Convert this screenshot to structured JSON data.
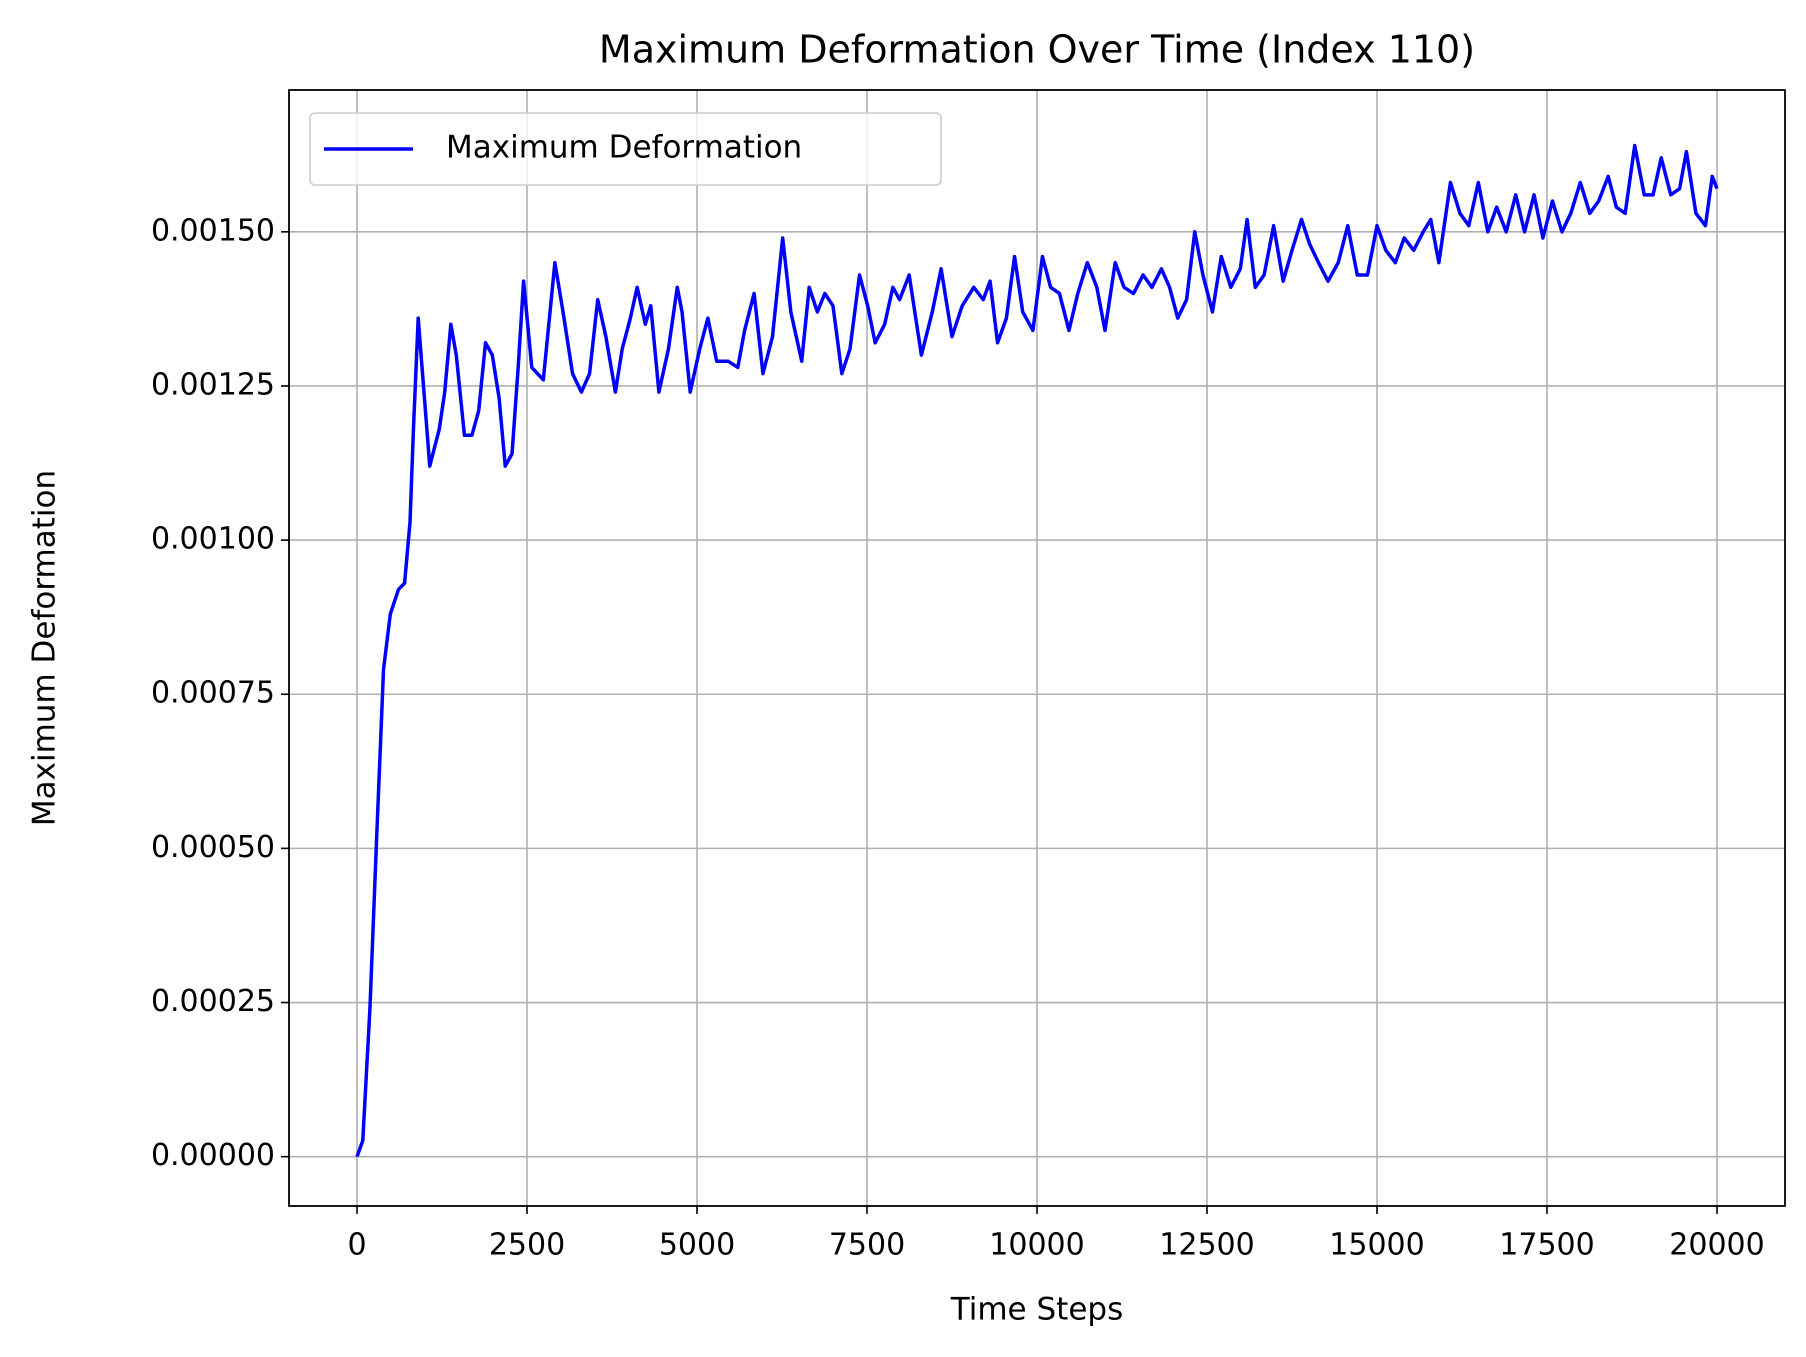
{
  "chart_data": {
    "type": "line",
    "title": "Maximum Deformation Over Time (Index 110)",
    "xlabel": "Time Steps",
    "ylabel": "Maximum Deformation",
    "xlim": [
      -1000,
      21000
    ],
    "ylim": [
      -8e-05,
      0.00173
    ],
    "xticks": [
      0,
      2500,
      5000,
      7500,
      10000,
      12500,
      15000,
      17500,
      20000
    ],
    "yticks": [
      {
        "value": 0,
        "label": "0.00000"
      },
      {
        "value": 0.00025,
        "label": "0.00025"
      },
      {
        "value": 0.0005,
        "label": "0.00050"
      },
      {
        "value": 0.00075,
        "label": "0.00075"
      },
      {
        "value": 0.001,
        "label": "0.00100"
      },
      {
        "value": 0.00125,
        "label": "0.00125"
      },
      {
        "value": 0.0015,
        "label": "0.00150"
      }
    ],
    "grid": true,
    "legend": "upper left",
    "x": [
      0,
      85,
      190,
      290,
      390,
      490,
      610,
      700,
      780,
      830,
      900,
      1070,
      1210,
      1290,
      1380,
      1460,
      1580,
      1690,
      1790,
      1890,
      1990,
      2090,
      2180,
      2280,
      2370,
      2450,
      2570,
      2740,
      2910,
      3030,
      3170,
      3300,
      3420,
      3540,
      3660,
      3800,
      3900,
      4020,
      4120,
      4240,
      4320,
      4440,
      4580,
      4710,
      4780,
      4900,
      5040,
      5160,
      5290,
      5460,
      5600,
      5700,
      5840,
      5970,
      6110,
      6260,
      6380,
      6540,
      6650,
      6770,
      6880,
      7000,
      7130,
      7250,
      7390,
      7510,
      7620,
      7760,
      7880,
      7980,
      8120,
      8300,
      8460,
      8590,
      8750,
      8900,
      9070,
      9210,
      9310,
      9420,
      9550,
      9670,
      9790,
      9940,
      10080,
      10200,
      10330,
      10470,
      10600,
      10740,
      10880,
      11000,
      11150,
      11280,
      11420,
      11560,
      11690,
      11830,
      11950,
      12070,
      12200,
      12320,
      12440,
      12580,
      12710,
      12850,
      12990,
      13090,
      13210,
      13340,
      13480,
      13620,
      13750,
      13890,
      14010,
      14140,
      14280,
      14430,
      14570,
      14710,
      14860,
      15000,
      15130,
      15270,
      15400,
      15540,
      15680,
      15790,
      15910,
      16080,
      16220,
      16350,
      16490,
      16630,
      16760,
      16900,
      17040,
      17170,
      17310,
      17440,
      17580,
      17720,
      17850,
      17990,
      18130,
      18260,
      18400,
      18520,
      18650,
      18790,
      18930,
      19060,
      19180,
      19320,
      19450,
      19550,
      19690,
      19830,
      19930,
      20000
    ],
    "series": [
      {
        "name": "Maximum Deformation",
        "color": "#0000ff",
        "values": [
          0,
          2.6e-05,
          0.00024,
          0.00052,
          0.00079,
          0.00088,
          0.00092,
          0.00093,
          0.00103,
          0.00118,
          0.00136,
          0.00112,
          0.00118,
          0.00124,
          0.00135,
          0.0013,
          0.00117,
          0.00117,
          0.00121,
          0.00132,
          0.0013,
          0.00123,
          0.00112,
          0.00114,
          0.00128,
          0.00142,
          0.00128,
          0.00126,
          0.00145,
          0.00137,
          0.00127,
          0.00124,
          0.00127,
          0.00139,
          0.00133,
          0.00124,
          0.00131,
          0.00136,
          0.00141,
          0.00135,
          0.00138,
          0.00124,
          0.00131,
          0.00141,
          0.00137,
          0.00124,
          0.00131,
          0.00136,
          0.00129,
          0.00129,
          0.00128,
          0.00134,
          0.0014,
          0.00127,
          0.00133,
          0.00149,
          0.00137,
          0.00129,
          0.00141,
          0.00137,
          0.0014,
          0.00138,
          0.00127,
          0.00131,
          0.00143,
          0.00138,
          0.00132,
          0.00135,
          0.00141,
          0.00139,
          0.00143,
          0.0013,
          0.00137,
          0.00144,
          0.00133,
          0.00138,
          0.00141,
          0.00139,
          0.00142,
          0.00132,
          0.00136,
          0.00146,
          0.00137,
          0.00134,
          0.00146,
          0.00141,
          0.0014,
          0.00134,
          0.0014,
          0.00145,
          0.00141,
          0.00134,
          0.00145,
          0.00141,
          0.0014,
          0.00143,
          0.00141,
          0.00144,
          0.00141,
          0.00136,
          0.00139,
          0.0015,
          0.00143,
          0.00137,
          0.00146,
          0.00141,
          0.00144,
          0.00152,
          0.00141,
          0.00143,
          0.00151,
          0.00142,
          0.00147,
          0.00152,
          0.00148,
          0.00145,
          0.00142,
          0.00145,
          0.00151,
          0.00143,
          0.00143,
          0.00151,
          0.00147,
          0.00145,
          0.00149,
          0.00147,
          0.0015,
          0.00152,
          0.00145,
          0.00158,
          0.00153,
          0.00151,
          0.00158,
          0.0015,
          0.00154,
          0.0015,
          0.00156,
          0.0015,
          0.00156,
          0.00149,
          0.00155,
          0.0015,
          0.00153,
          0.00158,
          0.00153,
          0.00155,
          0.00159,
          0.00154,
          0.00153,
          0.00164,
          0.00156,
          0.00156,
          0.00162,
          0.00156,
          0.00157,
          0.00163,
          0.00153,
          0.00151,
          0.00159,
          0.00157
        ]
      }
    ]
  }
}
